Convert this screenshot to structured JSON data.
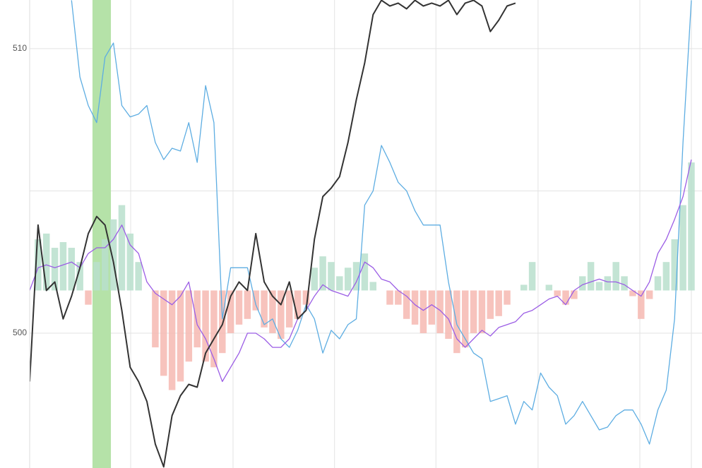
{
  "chart_data": {
    "type": "line",
    "x": [
      0,
      1,
      2,
      3,
      4,
      5,
      6,
      7,
      8,
      9,
      10,
      11,
      12,
      13,
      14,
      15,
      16,
      17,
      18,
      19,
      20,
      21,
      22,
      23,
      24,
      25,
      26,
      27,
      28,
      29,
      30,
      31,
      32,
      33,
      34,
      35,
      36,
      37,
      38,
      39,
      40,
      41,
      42,
      43,
      44,
      45,
      46,
      47,
      48,
      49,
      50,
      51,
      52,
      53,
      54,
      55,
      56,
      57,
      58,
      59,
      60,
      61,
      62,
      63,
      64,
      65,
      66,
      67,
      68,
      69,
      70,
      71,
      72,
      73,
      74,
      75,
      76,
      77,
      78,
      79
    ],
    "xlim": [
      0,
      80.27
    ],
    "xgrid": [
      0,
      12.06,
      24.28,
      36.4,
      48.5,
      60.7,
      72.85,
      79
    ],
    "ylim": [
      495.26,
      511.71
    ],
    "yticks": [
      500,
      510
    ],
    "ygrid": [
      500,
      505,
      510
    ],
    "grid": true,
    "highlight": {
      "from": 7.5,
      "to": 9.7,
      "color": "#b5e2a8"
    },
    "histogram": {
      "base": 501.5,
      "up_color": "#b9dfcc",
      "down_color": "#f6b8b2",
      "values": [
        501.5,
        503.3,
        503.5,
        503.0,
        503.2,
        503.0,
        502.5,
        501.0,
        502.5,
        503.3,
        504.0,
        504.5,
        503.5,
        502.5,
        501.5,
        499.5,
        498.5,
        498.0,
        498.3,
        499.0,
        499.5,
        499.0,
        498.8,
        499.3,
        500.0,
        500.3,
        500.5,
        500.8,
        500.2,
        500.0,
        499.8,
        500.2,
        500.5,
        501.0,
        502.3,
        502.7,
        502.5,
        502.0,
        502.3,
        502.5,
        502.8,
        501.8,
        501.5,
        501.0,
        501.0,
        500.5,
        500.3,
        500.0,
        500.3,
        500.0,
        499.8,
        499.3,
        499.5,
        500.0,
        500.0,
        500.5,
        500.6,
        501.0,
        501.5,
        501.7,
        502.5,
        501.5,
        501.7,
        501.3,
        501.0,
        501.2,
        502.0,
        502.5,
        501.8,
        502.0,
        502.5,
        502.0,
        501.3,
        500.5,
        501.2,
        502.0,
        502.5,
        503.3,
        504.5,
        506.0
      ]
    },
    "series": [
      {
        "color": "#5dade2",
        "values": [
          null,
          null,
          null,
          null,
          null,
          511.7,
          509.0,
          508.0,
          507.4,
          509.7,
          510.2,
          508.0,
          507.6,
          507.7,
          508.0,
          506.7,
          506.1,
          506.5,
          506.4,
          507.4,
          506.0,
          508.7,
          507.4,
          500.5,
          502.3,
          502.3,
          502.3,
          501.0,
          500.3,
          500.5,
          499.8,
          499.5,
          500.1,
          501.0,
          500.5,
          499.3,
          500.1,
          499.8,
          500.3,
          500.5,
          504.5,
          505.0,
          506.6,
          506.0,
          505.3,
          505.0,
          504.3,
          503.8,
          503.8,
          503.8,
          501.8,
          500.3,
          499.8,
          499.3,
          499.1,
          497.6,
          497.7,
          497.8,
          496.8,
          497.6,
          497.3,
          498.6,
          498.1,
          497.8,
          496.8,
          497.1,
          497.6,
          497.1,
          496.6,
          496.7,
          497.1,
          497.3,
          497.3,
          496.8,
          496.1,
          497.3,
          498.0,
          500.5,
          506.7,
          511.7
        ]
      },
      {
        "color": "#9b5de5",
        "values": [
          501.5,
          502.3,
          502.4,
          502.3,
          502.4,
          502.5,
          502.3,
          502.8,
          503.0,
          503.0,
          503.3,
          503.8,
          503.1,
          502.8,
          501.8,
          501.4,
          501.2,
          501.0,
          501.3,
          501.8,
          500.3,
          499.8,
          499.1,
          498.3,
          498.8,
          499.3,
          500.0,
          500.0,
          499.8,
          499.5,
          499.5,
          499.8,
          500.5,
          500.8,
          501.3,
          501.7,
          501.5,
          501.4,
          501.3,
          501.8,
          502.5,
          502.3,
          501.9,
          501.8,
          501.5,
          501.3,
          501.0,
          500.8,
          501.0,
          500.8,
          500.5,
          499.8,
          499.5,
          499.8,
          500.1,
          499.9,
          500.2,
          500.3,
          500.4,
          500.7,
          500.8,
          501.0,
          501.2,
          501.3,
          501.0,
          501.5,
          501.7,
          501.8,
          501.9,
          501.8,
          501.8,
          501.7,
          501.5,
          501.3,
          501.8,
          502.8,
          503.3,
          504.0,
          504.8,
          506.1
        ]
      },
      {
        "color": "#333333",
        "values": [
          498.3,
          503.8,
          501.5,
          501.8,
          500.5,
          501.3,
          502.3,
          503.5,
          504.1,
          503.8,
          502.5,
          500.8,
          498.8,
          498.3,
          497.6,
          496.1,
          495.3,
          497.1,
          497.8,
          498.2,
          498.1,
          499.3,
          499.8,
          500.3,
          501.3,
          501.8,
          501.5,
          503.5,
          501.8,
          501.3,
          501.0,
          501.8,
          500.5,
          500.8,
          503.3,
          504.8,
          505.1,
          505.5,
          506.7,
          508.2,
          509.5,
          511.2,
          511.7,
          511.5,
          511.6,
          511.4,
          511.7,
          511.5,
          511.6,
          511.5,
          511.7,
          511.2,
          511.6,
          511.7,
          511.5,
          510.6,
          511.0,
          511.5,
          511.6,
          null,
          null,
          null,
          null,
          null,
          null,
          null,
          null,
          null,
          null,
          null,
          null,
          null,
          null,
          null,
          null,
          null,
          null,
          null,
          null,
          null
        ]
      }
    ]
  }
}
